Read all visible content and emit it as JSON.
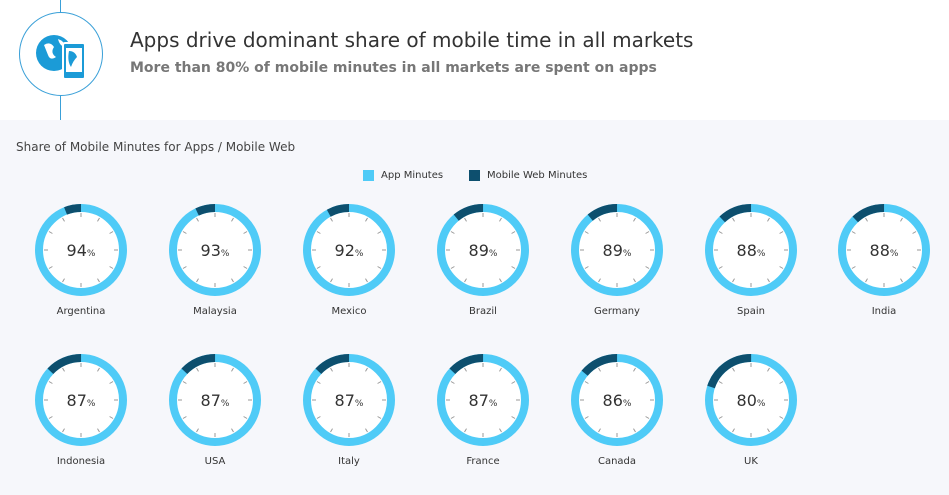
{
  "header": {
    "title": "Apps drive dominant share of mobile time in all markets",
    "subtitle": "More than 80% of mobile minutes in all markets are spent on apps",
    "icon": "globe-phone-icon"
  },
  "colors": {
    "app": "#4fcbf7",
    "web": "#0d4f6e"
  },
  "chart_data": {
    "type": "pie",
    "title": "Share of Mobile Minutes for Apps / Mobile Web",
    "legend": [
      "App Minutes",
      "Mobile Web Minutes"
    ],
    "legend_position": "top-center",
    "unit": "%",
    "categories": [
      "Argentina",
      "Malaysia",
      "Mexico",
      "Brazil",
      "Germany",
      "Spain",
      "India",
      "Indonesia",
      "USA",
      "Italy",
      "France",
      "Canada",
      "UK"
    ],
    "app_values": [
      94,
      93,
      92,
      89,
      89,
      88,
      88,
      87,
      87,
      87,
      87,
      86,
      80
    ]
  }
}
